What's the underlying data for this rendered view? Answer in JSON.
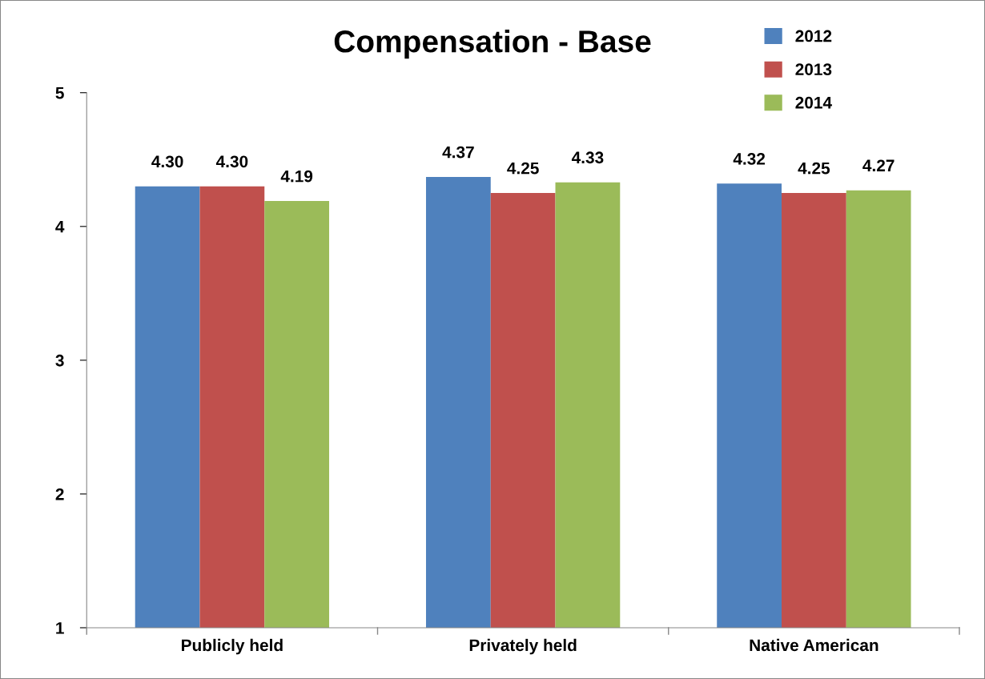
{
  "chart_data": {
    "type": "bar",
    "title": "Compensation - Base",
    "categories": [
      "Publicly held",
      "Privately held",
      "Native American"
    ],
    "series": [
      {
        "name": "2012",
        "color": "#4f81bd",
        "values": [
          4.3,
          4.37,
          4.32
        ],
        "value_labels": [
          "4.30",
          "4.37",
          "4.32"
        ]
      },
      {
        "name": "2013",
        "color": "#c0504d",
        "values": [
          4.3,
          4.25,
          4.25
        ],
        "value_labels": [
          "4.30",
          "4.25",
          "4.25"
        ]
      },
      {
        "name": "2014",
        "color": "#9bbb59",
        "values": [
          4.19,
          4.33,
          4.27
        ],
        "value_labels": [
          "4.19",
          "4.33",
          "4.27"
        ]
      }
    ],
    "ylim": [
      1,
      5
    ],
    "yticks": [
      1,
      2,
      3,
      4,
      5
    ],
    "grid": false,
    "legend": "top right"
  }
}
